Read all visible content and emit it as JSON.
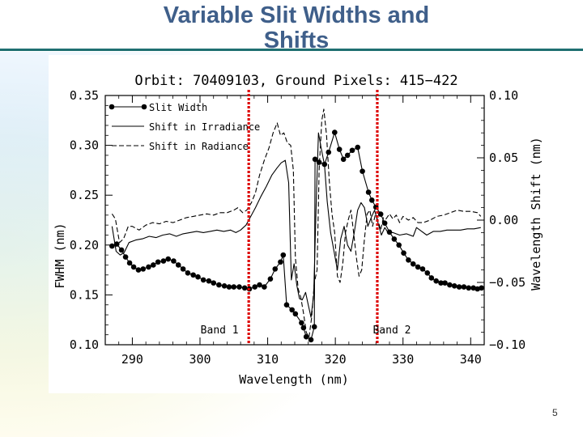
{
  "slide": {
    "title_line1": "Variable Slit Widths and",
    "title_line2": "Shifts",
    "page_number": "5",
    "accent_color": "#1e6f71",
    "title_color": "#3f5f8a"
  },
  "chart_data": {
    "type": "line",
    "title": "Orbit: 70409103, Ground Pixels: 415−422",
    "xlabel": "Wavelength (nm)",
    "ylabel": "FWHM (nm)",
    "y2label": "Wavelength Shift (nm)",
    "xlim": [
      286,
      342
    ],
    "ylim": [
      0.1,
      0.35
    ],
    "y2lim": [
      -0.1,
      0.1
    ],
    "x_ticks": [
      290,
      300,
      310,
      320,
      330,
      340
    ],
    "y_ticks": [
      "0.10",
      "0.15",
      "0.20",
      "0.25",
      "0.30",
      "0.35"
    ],
    "y2_ticks": [
      "−0.10",
      "−0.05",
      "0.00",
      "0.05",
      "0.10"
    ],
    "y2_tick_values": [
      -0.1,
      -0.05,
      0.0,
      0.05,
      0.1
    ],
    "legend_position": "top-left",
    "marker_lines": [
      {
        "x": 307.2,
        "label": "Band 1",
        "color": "#dd0000"
      },
      {
        "x": 326.2,
        "label": "Band 2",
        "color": "#dd0000"
      }
    ],
    "series": [
      {
        "name": "Slit Width",
        "axis": "left",
        "style": "line-dots",
        "points": [
          [
            287.0,
            0.199
          ],
          [
            287.7,
            0.201
          ],
          [
            288.4,
            0.195
          ],
          [
            289.0,
            0.188
          ],
          [
            289.6,
            0.182
          ],
          [
            290.2,
            0.178
          ],
          [
            290.9,
            0.175
          ],
          [
            291.6,
            0.176
          ],
          [
            292.4,
            0.178
          ],
          [
            293.1,
            0.18
          ],
          [
            293.8,
            0.183
          ],
          [
            294.6,
            0.184
          ],
          [
            295.3,
            0.186
          ],
          [
            296.1,
            0.184
          ],
          [
            296.8,
            0.18
          ],
          [
            297.5,
            0.176
          ],
          [
            298.2,
            0.172
          ],
          [
            299.0,
            0.17
          ],
          [
            299.7,
            0.168
          ],
          [
            300.5,
            0.165
          ],
          [
            301.3,
            0.164
          ],
          [
            302.0,
            0.162
          ],
          [
            302.8,
            0.16
          ],
          [
            303.6,
            0.159
          ],
          [
            304.3,
            0.158
          ],
          [
            305.0,
            0.158
          ],
          [
            305.8,
            0.158
          ],
          [
            306.6,
            0.157
          ],
          [
            307.3,
            0.156
          ],
          [
            308.1,
            0.158
          ],
          [
            308.8,
            0.16
          ],
          [
            309.5,
            0.158
          ],
          [
            310.4,
            0.166
          ],
          [
            311.1,
            0.176
          ],
          [
            311.9,
            0.183
          ],
          [
            312.3,
            0.19
          ],
          [
            312.8,
            0.14
          ],
          [
            313.6,
            0.135
          ],
          [
            314.1,
            0.131
          ],
          [
            315.0,
            0.122
          ],
          [
            315.3,
            0.117
          ],
          [
            315.7,
            0.108
          ],
          [
            316.4,
            0.105
          ],
          [
            316.9,
            0.118
          ],
          [
            317.0,
            0.286
          ],
          [
            317.6,
            0.283
          ],
          [
            318.4,
            0.281
          ],
          [
            319.0,
            0.293
          ],
          [
            319.9,
            0.313
          ],
          [
            320.6,
            0.296
          ],
          [
            321.2,
            0.286
          ],
          [
            321.8,
            0.29
          ],
          [
            322.5,
            0.295
          ],
          [
            323.3,
            0.298
          ],
          [
            324.0,
            0.274
          ],
          [
            324.9,
            0.253
          ],
          [
            325.4,
            0.245
          ],
          [
            326.0,
            0.238
          ],
          [
            326.7,
            0.231
          ],
          [
            327.3,
            0.222
          ],
          [
            328.0,
            0.213
          ],
          [
            328.7,
            0.206
          ],
          [
            329.4,
            0.2
          ],
          [
            330.1,
            0.192
          ],
          [
            330.8,
            0.185
          ],
          [
            331.5,
            0.181
          ],
          [
            332.2,
            0.178
          ],
          [
            332.9,
            0.176
          ],
          [
            333.6,
            0.172
          ],
          [
            334.2,
            0.167
          ],
          [
            334.9,
            0.164
          ],
          [
            335.6,
            0.162
          ],
          [
            336.2,
            0.162
          ],
          [
            336.9,
            0.16
          ],
          [
            337.6,
            0.159
          ],
          [
            338.3,
            0.158
          ],
          [
            339.0,
            0.158
          ],
          [
            339.7,
            0.157
          ],
          [
            340.4,
            0.157
          ],
          [
            341.0,
            0.156
          ],
          [
            341.6,
            0.157
          ]
        ]
      },
      {
        "name": "Shift in Irradiance",
        "axis": "right",
        "style": "solid",
        "points": [
          [
            287.0,
            -0.005
          ],
          [
            287.6,
            -0.025
          ],
          [
            288.2,
            -0.028
          ],
          [
            288.8,
            -0.026
          ],
          [
            289.5,
            -0.018
          ],
          [
            290.5,
            -0.016
          ],
          [
            291.5,
            -0.015
          ],
          [
            292.5,
            -0.013
          ],
          [
            293.5,
            -0.014
          ],
          [
            294.5,
            -0.012
          ],
          [
            295.5,
            -0.011
          ],
          [
            296.5,
            -0.013
          ],
          [
            297.5,
            -0.011
          ],
          [
            298.5,
            -0.01
          ],
          [
            299.5,
            -0.009
          ],
          [
            300.5,
            -0.01
          ],
          [
            301.5,
            -0.009
          ],
          [
            302.5,
            -0.008
          ],
          [
            303.5,
            -0.009
          ],
          [
            304.5,
            -0.008
          ],
          [
            305.3,
            -0.01
          ],
          [
            306.0,
            -0.008
          ],
          [
            306.8,
            -0.004
          ],
          [
            307.5,
            0.003
          ],
          [
            308.2,
            0.01
          ],
          [
            309.0,
            0.019
          ],
          [
            309.8,
            0.027
          ],
          [
            310.6,
            0.036
          ],
          [
            311.4,
            0.042
          ],
          [
            312.0,
            0.046
          ],
          [
            312.6,
            0.048
          ],
          [
            313.1,
            0.03
          ],
          [
            313.5,
            -0.048
          ],
          [
            313.9,
            -0.035
          ],
          [
            314.3,
            -0.052
          ],
          [
            314.7,
            -0.063
          ],
          [
            315.1,
            -0.064
          ],
          [
            315.6,
            -0.058
          ],
          [
            316.0,
            -0.068
          ],
          [
            316.4,
            -0.078
          ],
          [
            316.8,
            -0.06
          ],
          [
            317.2,
            0.018
          ],
          [
            317.5,
            0.07
          ],
          [
            317.9,
            0.058
          ],
          [
            318.4,
            0.044
          ],
          [
            318.8,
            0.015
          ],
          [
            319.3,
            -0.01
          ],
          [
            319.8,
            -0.025
          ],
          [
            320.3,
            -0.04
          ],
          [
            320.8,
            -0.015
          ],
          [
            321.3,
            -0.005
          ],
          [
            321.8,
            -0.02
          ],
          [
            322.3,
            -0.025
          ],
          [
            322.8,
            -0.01
          ],
          [
            323.3,
            0.008
          ],
          [
            323.8,
            0.014
          ],
          [
            324.3,
            0.01
          ],
          [
            324.8,
            -0.005
          ],
          [
            325.3,
            0.002
          ],
          [
            325.8,
            0.008
          ],
          [
            326.3,
            -0.002
          ],
          [
            326.8,
            -0.012
          ],
          [
            327.3,
            -0.006
          ],
          [
            327.8,
            -0.01
          ],
          [
            328.5,
            -0.01
          ],
          [
            329.5,
            -0.012
          ],
          [
            330.5,
            -0.011
          ],
          [
            331.5,
            -0.013
          ],
          [
            332.0,
            -0.006
          ],
          [
            332.5,
            -0.008
          ],
          [
            333.5,
            -0.012
          ],
          [
            334.5,
            -0.009
          ],
          [
            335.5,
            -0.009
          ],
          [
            336.5,
            -0.008
          ],
          [
            337.5,
            -0.008
          ],
          [
            338.5,
            -0.008
          ],
          [
            339.5,
            -0.007
          ],
          [
            340.5,
            -0.007
          ],
          [
            341.5,
            -0.006
          ]
        ]
      },
      {
        "name": "Shift in Radiance",
        "axis": "right",
        "style": "dashed",
        "points": [
          [
            287.0,
            0.005
          ],
          [
            287.5,
            0.001
          ],
          [
            288.1,
            -0.018
          ],
          [
            288.7,
            -0.015
          ],
          [
            289.4,
            -0.005
          ],
          [
            290.0,
            -0.005
          ],
          [
            291.0,
            -0.008
          ],
          [
            292.0,
            -0.004
          ],
          [
            293.0,
            -0.002
          ],
          [
            294.0,
            -0.003
          ],
          [
            295.0,
            -0.001
          ],
          [
            296.0,
            -0.002
          ],
          [
            297.0,
            0.0
          ],
          [
            298.0,
            0.002
          ],
          [
            299.0,
            0.003
          ],
          [
            300.0,
            0.004
          ],
          [
            301.0,
            0.005
          ],
          [
            302.0,
            0.004
          ],
          [
            303.0,
            0.006
          ],
          [
            304.0,
            0.006
          ],
          [
            305.0,
            0.008
          ],
          [
            305.6,
            0.01
          ],
          [
            306.3,
            0.006
          ],
          [
            306.9,
            0.008
          ],
          [
            307.6,
            0.014
          ],
          [
            308.2,
            0.022
          ],
          [
            308.8,
            0.036
          ],
          [
            309.5,
            0.048
          ],
          [
            310.2,
            0.058
          ],
          [
            310.8,
            0.07
          ],
          [
            311.4,
            0.078
          ],
          [
            311.9,
            0.068
          ],
          [
            312.4,
            0.07
          ],
          [
            312.9,
            0.062
          ],
          [
            313.4,
            0.06
          ],
          [
            313.8,
            0.04
          ],
          [
            314.1,
            -0.03
          ],
          [
            314.5,
            -0.055
          ],
          [
            314.9,
            -0.062
          ],
          [
            315.3,
            -0.075
          ],
          [
            315.7,
            -0.09
          ],
          [
            316.1,
            -0.094
          ],
          [
            316.5,
            -0.078
          ],
          [
            316.9,
            -0.05
          ],
          [
            317.3,
            -0.04
          ],
          [
            317.6,
            0.04
          ],
          [
            318.0,
            0.08
          ],
          [
            318.3,
            0.089
          ],
          [
            318.7,
            0.068
          ],
          [
            319.1,
            0.032
          ],
          [
            319.5,
            0.005
          ],
          [
            319.9,
            -0.01
          ],
          [
            320.3,
            -0.045
          ],
          [
            320.7,
            -0.05
          ],
          [
            321.1,
            -0.035
          ],
          [
            321.5,
            -0.01
          ],
          [
            321.9,
            0.0
          ],
          [
            322.3,
            0.008
          ],
          [
            322.7,
            -0.01
          ],
          [
            323.1,
            -0.03
          ],
          [
            323.5,
            -0.045
          ],
          [
            323.9,
            -0.04
          ],
          [
            324.3,
            -0.015
          ],
          [
            324.7,
            0.005
          ],
          [
            325.1,
            0.008
          ],
          [
            325.5,
            -0.005
          ],
          [
            325.9,
            0.004
          ],
          [
            326.3,
            0.0
          ],
          [
            326.7,
            -0.008
          ],
          [
            327.1,
            0.002
          ],
          [
            327.5,
            0.001
          ],
          [
            328.0,
            0.005
          ],
          [
            328.5,
            0.001
          ],
          [
            329.0,
            0.004
          ],
          [
            329.5,
            -0.002
          ],
          [
            330.0,
            0.003
          ],
          [
            330.8,
            0.0
          ],
          [
            331.5,
            0.002
          ],
          [
            332.2,
            -0.002
          ],
          [
            333.0,
            -0.002
          ],
          [
            334.0,
            0.0
          ],
          [
            335.0,
            0.003
          ],
          [
            336.0,
            0.004
          ],
          [
            337.0,
            0.006
          ],
          [
            338.0,
            0.008
          ],
          [
            339.0,
            0.007
          ],
          [
            340.0,
            0.007
          ],
          [
            341.0,
            0.006
          ],
          [
            341.5,
            0.003
          ]
        ]
      }
    ]
  }
}
